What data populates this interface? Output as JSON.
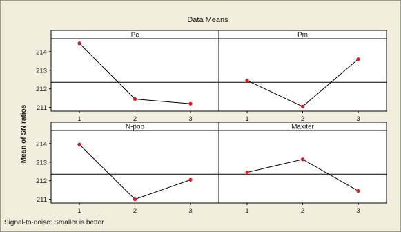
{
  "chart_data": {
    "type": "line",
    "title": "Data Means",
    "ylabel": "Mean of SN ratios",
    "footnote": "Signal-to-noise: Smaller is better",
    "overall_mean": 212.35,
    "ylim": [
      210.8,
      214.7
    ],
    "yticks": [
      211,
      212,
      213,
      214
    ],
    "x": [
      1,
      2,
      3
    ],
    "panels": [
      {
        "name": "Pc",
        "values": [
          214.45,
          211.45,
          211.2
        ]
      },
      {
        "name": "Pm",
        "values": [
          212.45,
          211.05,
          213.6
        ]
      },
      {
        "name": "N-pop",
        "values": [
          213.95,
          211.0,
          212.05
        ]
      },
      {
        "name": "Maxiter",
        "values": [
          212.45,
          213.15,
          211.45
        ]
      }
    ],
    "colors": {
      "line": "#000000",
      "marker": "#e8141b",
      "reference": "#000000",
      "background": "#f2eedd",
      "panel": "#ffffff"
    }
  }
}
